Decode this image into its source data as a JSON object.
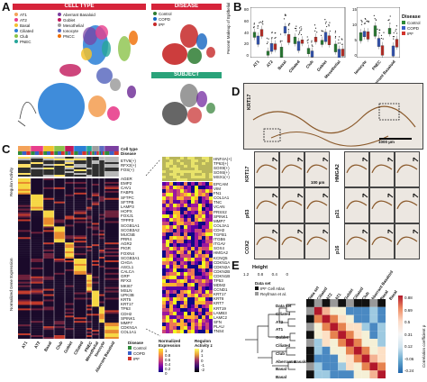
{
  "panels": {
    "a": "A",
    "b": "B",
    "c": "C",
    "d": "D",
    "e": "E"
  },
  "panel_a": {
    "cell_type_header": "CELL TYPE",
    "disease_header": "DISEASE",
    "subject_header": "SUBJECT",
    "colors": {
      "cell_type": "#d6243a",
      "disease": "#d6243a",
      "subject": "#2aa37a"
    },
    "cell_types_left": [
      {
        "label": "AT1",
        "color": "#f4a259"
      },
      {
        "label": "AT2",
        "color": "#e83e8c"
      },
      {
        "label": "Basal",
        "color": "#f2c12e"
      },
      {
        "label": "Ciliated",
        "color": "#2a7fd6"
      },
      {
        "label": "Club",
        "color": "#8bc34a"
      },
      {
        "label": "PNEC",
        "color": "#26a69a"
      }
    ],
    "cell_types_right": [
      {
        "label": "Aberrant Basaloid",
        "color": "#7b3fa0"
      },
      {
        "label": "Goblet",
        "color": "#c2185b"
      },
      {
        "label": "Mesothelial",
        "color": "#9e9e9e"
      },
      {
        "label": "Ionocyte",
        "color": "#5c6bc0"
      },
      {
        "label": "PNCC",
        "color": "#ef6c00"
      }
    ],
    "disease_items": [
      {
        "label": "Control",
        "color": "#2e7d32"
      },
      {
        "label": "COPD",
        "color": "#1565c0"
      },
      {
        "label": "IPF",
        "color": "#c62828"
      }
    ]
  },
  "panel_b": {
    "ylabel": "Percent Makeup of Epithelial",
    "left_categories": [
      "AT1",
      "AT2",
      "Basal",
      "Ciliated",
      "Club",
      "Goblet",
      "Mesothelial"
    ],
    "right_categories": [
      "Ionocyte",
      "PNEC",
      "Aberrant Basaloid"
    ],
    "left_ticks": [
      "80",
      "60",
      "40",
      "20",
      "0"
    ],
    "right_ticks": [
      "15",
      "10",
      "5",
      "0"
    ],
    "legend_title": "Disease",
    "legend": [
      {
        "label": "Control",
        "color": "#2e8b3a"
      },
      {
        "label": "COPD",
        "color": "#3a5fc8"
      },
      {
        "label": "IPF",
        "color": "#d2342c"
      }
    ]
  },
  "panel_c": {
    "side_label_top": "Regulon Activity",
    "side_label_bottom": "Normalized Gene Expression",
    "row_labels_top": [
      "Cell type",
      "Disease"
    ],
    "regulons": [
      "ETV6(+)",
      "RFX3(+)",
      "FOS(+)"
    ],
    "regulons_right": [
      "HNF4A(+)",
      "TP63(+)",
      "SOX9(+)",
      "SOX6(+)",
      "MSX1(+)"
    ],
    "genes": [
      "AGER",
      "EMP2",
      "CAV1",
      "FABP5",
      "SFTPC",
      "SFTPB",
      "LAMP3",
      "HOPX",
      "FOXJ1",
      "TPPP3",
      "SCGB1A1",
      "SCGB3A2",
      "MUC5B",
      "PRR4",
      "AGR2",
      "PIGR",
      "FOXN4",
      "SCGB3A1",
      "CHGA",
      "ASCL1",
      "CALCA",
      "GRP",
      "RFX3",
      "MKI67",
      "MSLN",
      "UPK3B",
      "KRT5",
      "KRT17",
      "TP63",
      "CDH2",
      "SPINK1",
      "MMP7",
      "CDKN1A",
      "COL1A1"
    ],
    "genes_right": [
      "EPCAM",
      "VIM",
      "FN1",
      "COL1A1",
      "TNC",
      "VCAN",
      "PRSS2",
      "SPINK1",
      "MMP7",
      "COL3A1",
      "CDH2",
      "TGFB1",
      "ITGB6",
      "ITGAV",
      "SOX4",
      "HMGA2",
      "KCNQ5",
      "CDKN1A",
      "CDKN2A",
      "CDKN2B",
      "CDKN1B",
      "TP53",
      "MDM2",
      "CCND1",
      "KRT17",
      "KRT8",
      "KRT7",
      "KRT19",
      "LAMB3",
      "LAMC2",
      "SFN",
      "PLAU",
      "TNS4"
    ],
    "column_labels": [
      "AT1",
      "AT2",
      "Basal",
      "Club",
      "Goblet",
      "Ciliated",
      "PNEC",
      "Mesothelial",
      "Ionocyte",
      "Aberrant Basaloid"
    ],
    "legend_disease_title": "Disease",
    "legend_disease": [
      {
        "label": "Control",
        "color": "#2e8b3a"
      },
      {
        "label": "COPD",
        "color": "#3a5fc8"
      },
      {
        "label": "IPF",
        "color": "#d2342c"
      }
    ],
    "legend_expr_title": "Normalized Expression",
    "legend_expr_ticks": [
      "1",
      "0.8",
      "0.6",
      "0.4",
      "0.2",
      "0"
    ],
    "legend_regulon_title": "Regulon Activity z",
    "legend_regulon_ticks": [
      "2",
      "1",
      "0",
      "-1",
      "-2"
    ]
  },
  "panel_d": {
    "label_top": "KRT17",
    "scale_top": "1000 µm",
    "rows_left": [
      "KRT17",
      "p63",
      "COX2"
    ],
    "rows_right": [
      "HMGA2",
      "p21",
      "p16"
    ],
    "scale_small": "100 µm"
  },
  "panel_e": {
    "height_label": "Height",
    "height_ticks": [
      "1.2",
      "0.8",
      "0.4",
      "0"
    ],
    "dataset_title": "Data set",
    "datasets": [
      {
        "label": "IPF Cell Atlas",
        "color": "#111111"
      },
      {
        "label": "Reyfman et al.",
        "color": "#999999"
      }
    ],
    "data_set_row": "Data set",
    "rows": [
      "Ciliated",
      "AT2",
      "AT1",
      "Goblet",
      "Ciliated",
      "Club",
      "Aberrant Basaloid",
      "Basal",
      "Basal"
    ],
    "cols": [
      "Data set",
      "Ciliated",
      "AT2",
      "AT1",
      "Goblet",
      "Ciliated",
      "Club",
      "Aberrant Basaloid",
      "Basal",
      "Basal"
    ],
    "colorbar_title": "Correlation coefficient ρ",
    "colorbar_ticks": [
      "0.88",
      "0.69",
      "0.5",
      "0.31",
      "0.12",
      "-0.06",
      "-0.24"
    ]
  }
}
